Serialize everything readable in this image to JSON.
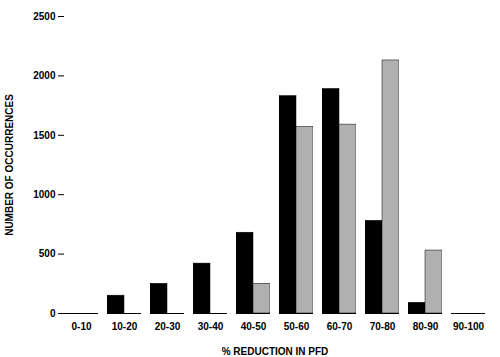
{
  "chart_data": {
    "type": "bar",
    "categories": [
      "0-10",
      "10-20",
      "20-30",
      "30-40",
      "40-50",
      "50-60",
      "60-70",
      "70-80",
      "80-90",
      "90-100"
    ],
    "series": [
      {
        "color": "#000000",
        "values": [
          0,
          150,
          250,
          420,
          680,
          1830,
          1890,
          780,
          90,
          0
        ]
      },
      {
        "color": "#b0b0b0",
        "values": [
          0,
          0,
          0,
          0,
          250,
          1570,
          1590,
          2130,
          530,
          0
        ]
      }
    ],
    "xlabel": "% REDUCTION IN PFD",
    "ylabel": "NUMBER OF OCCURRENCES",
    "ylim": [
      0,
      2500
    ],
    "yticks": [
      0,
      500,
      1000,
      1500,
      2000,
      2500
    ],
    "grid": false
  }
}
